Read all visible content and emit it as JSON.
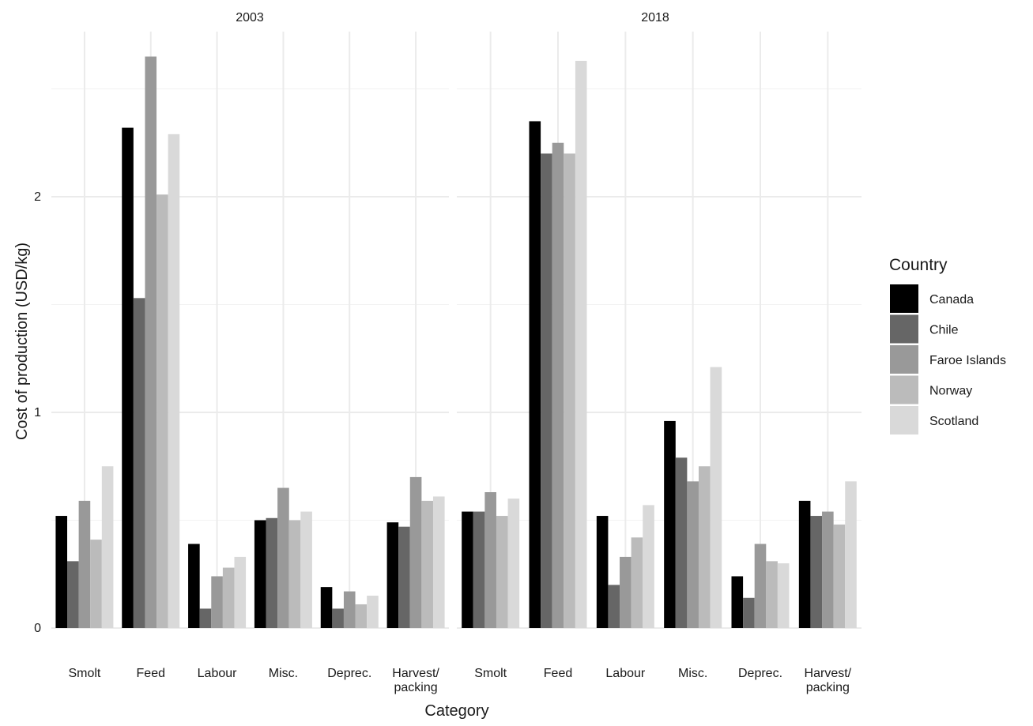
{
  "chart_data": {
    "type": "bar",
    "ylabel": "Cost of production (USD/kg)",
    "xlabel": "Category",
    "categories": [
      "Smolt",
      "Feed",
      "Labour",
      "Misc.",
      "Deprec.",
      "Harvest/\npacking"
    ],
    "ylim": [
      0,
      2.7
    ],
    "yticks": [
      0,
      1,
      2
    ],
    "grid": true,
    "legend": {
      "title": "Country",
      "position": "right"
    },
    "series": [
      {
        "name": "Canada",
        "color": "#000000"
      },
      {
        "name": "Chile",
        "color": "#666666"
      },
      {
        "name": "Faroe Islands",
        "color": "#999999"
      },
      {
        "name": "Norway",
        "color": "#bbbbbb"
      },
      {
        "name": "Scotland",
        "color": "#d9d9d9"
      }
    ],
    "panels": [
      {
        "title": "2003",
        "values": {
          "Canada": [
            0.52,
            2.32,
            0.39,
            0.5,
            0.19,
            0.49
          ],
          "Chile": [
            0.31,
            1.53,
            0.09,
            0.51,
            0.09,
            0.47
          ],
          "Faroe Islands": [
            0.59,
            2.65,
            0.24,
            0.65,
            0.17,
            0.7
          ],
          "Norway": [
            0.41,
            2.01,
            0.28,
            0.5,
            0.11,
            0.59
          ],
          "Scotland": [
            0.75,
            2.29,
            0.33,
            0.54,
            0.15,
            0.61
          ]
        }
      },
      {
        "title": "2018",
        "values": {
          "Canada": [
            0.54,
            2.35,
            0.52,
            0.96,
            0.24,
            0.59
          ],
          "Chile": [
            0.54,
            2.2,
            0.2,
            0.79,
            0.14,
            0.52
          ],
          "Faroe Islands": [
            0.63,
            2.25,
            0.33,
            0.68,
            0.39,
            0.54
          ],
          "Norway": [
            0.52,
            2.2,
            0.42,
            0.75,
            0.31,
            0.48
          ],
          "Scotland": [
            0.6,
            2.63,
            0.57,
            1.21,
            0.3,
            0.68
          ]
        }
      }
    ]
  }
}
